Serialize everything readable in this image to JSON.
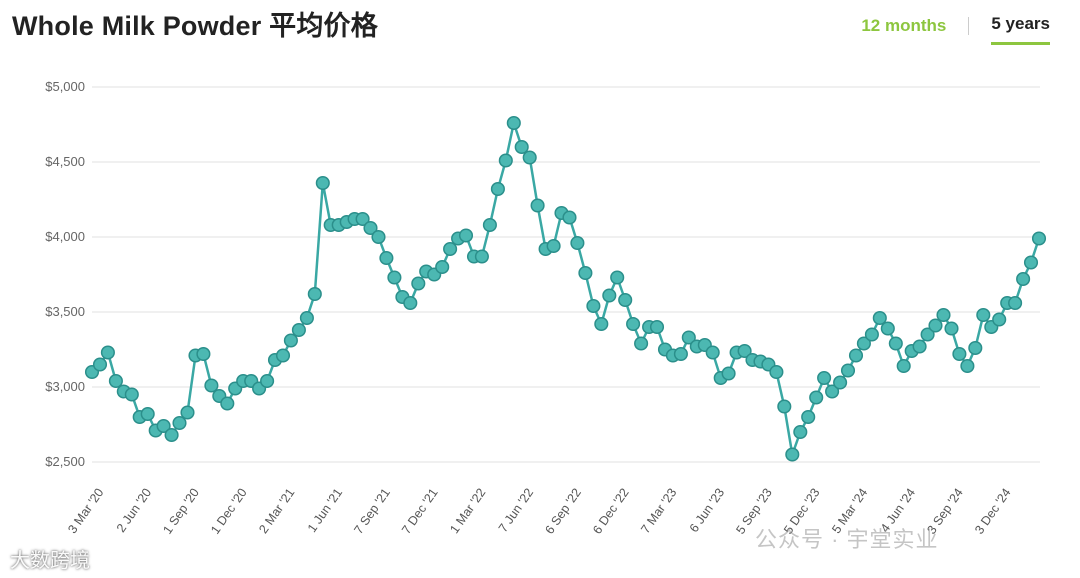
{
  "header": {
    "title": "Whole Milk Powder 平均价格",
    "tabs": [
      {
        "label": "12 months",
        "active": false
      },
      {
        "label": "5 years",
        "active": true
      }
    ]
  },
  "watermarks": {
    "right": "公众号 · 宇堂实业",
    "left": "大数跨境"
  },
  "colors": {
    "line": "#3aa8a4",
    "marker_fill": "#4cb8b2",
    "marker_stroke": "#2b8f8b",
    "grid": "#e0e0e0",
    "accent": "#8dc63f"
  },
  "chart_data": {
    "type": "line",
    "ylim": [
      2500,
      5000
    ],
    "y_ticks": [
      "$2,500",
      "$3,000",
      "$3,500",
      "$4,000",
      "$4,500",
      "$5,000"
    ],
    "y_tick_values": [
      2500,
      3000,
      3500,
      4000,
      4500,
      5000
    ],
    "x_ticks": [
      "3 Mar '20",
      "2 Jun '20",
      "1 Sep '20",
      "1 Dec '20",
      "2 Mar '21",
      "1 Jun '21",
      "7 Sep '21",
      "7 Dec '21",
      "1 Mar '22",
      "7 Jun '22",
      "6 Sep '22",
      "6 Dec '22",
      "7 Mar '23",
      "6 Jun '23",
      "5 Sep '23",
      "5 Dec '23",
      "5 Mar '24",
      "4 Jun '24",
      "3 Sep '24",
      "3 Dec '24"
    ],
    "x_tick_index": [
      1,
      7,
      13,
      19,
      25,
      31,
      37,
      43,
      49,
      55,
      61,
      67,
      73,
      79,
      85,
      91,
      97,
      103,
      109,
      115
    ],
    "series": [
      {
        "values": [
          3100,
          3150,
          3230,
          3040,
          2970,
          2950,
          2800,
          2820,
          2710,
          2740,
          2680,
          2760,
          2830,
          3210,
          3220,
          3010,
          2940,
          2890,
          2990,
          3040,
          3040,
          2990,
          3040,
          3180,
          3210,
          3310,
          3380,
          3460,
          3620,
          4360,
          4080,
          4080,
          4100,
          4120,
          4120,
          4060,
          4000,
          3860,
          3730,
          3600,
          3560,
          3690,
          3770,
          3750,
          3800,
          3920,
          3990,
          4010,
          3870,
          3870,
          4080,
          4320,
          4510,
          4760,
          4600,
          4530,
          4210,
          3920,
          3940,
          4160,
          4130,
          3960,
          3760,
          3540,
          3420,
          3610,
          3730,
          3580,
          3420,
          3290,
          3400,
          3400,
          3250,
          3210,
          3220,
          3330,
          3270,
          3280,
          3230,
          3060,
          3090,
          3230,
          3240,
          3180,
          3170,
          3150,
          3100,
          2870,
          2550,
          2700,
          2800,
          2930,
          3060,
          2970,
          3030,
          3110,
          3210,
          3290,
          3350,
          3460,
          3390,
          3290,
          3140,
          3240,
          3270,
          3350,
          3410,
          3480,
          3390,
          3220,
          3140,
          3260,
          3480,
          3400,
          3450,
          3560,
          3560,
          3720,
          3830,
          3990
        ]
      }
    ],
    "grid": true,
    "legend": "none"
  }
}
